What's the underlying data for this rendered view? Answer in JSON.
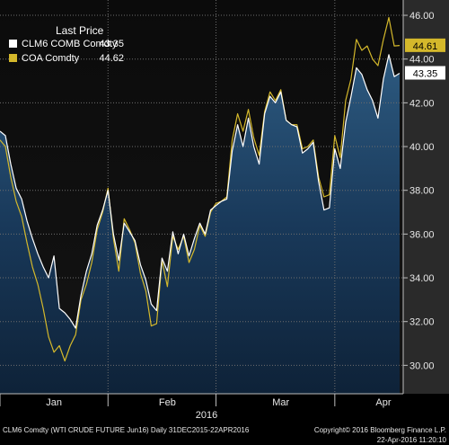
{
  "chart_data": {
    "type": "area",
    "x_labels": [
      "Jan",
      "Feb",
      "Mar",
      "Apr"
    ],
    "year_label": "2016",
    "y_ticks": [
      "30.00",
      "32.00",
      "34.00",
      "36.00",
      "38.00",
      "40.00",
      "42.00",
      "44.00",
      "46.00"
    ],
    "ylim": [
      28.7,
      46.7
    ],
    "legend": {
      "title": "Last Price",
      "items": [
        {
          "name": "CLM6 COMB Comdty",
          "value": "43.35",
          "color": "#ffffff"
        },
        {
          "name": "COA Comdty",
          "value": "44.62",
          "color": "#d4b82b"
        }
      ]
    },
    "badges": [
      {
        "text": "44.61",
        "bg": "#d4b82b",
        "fg": "#000000",
        "y": 44.61
      },
      {
        "text": "43.35",
        "bg": "#ffffff",
        "fg": "#000000",
        "y": 43.35
      }
    ],
    "series": [
      {
        "name": "CLM6 COMB Comdty",
        "color": "#ffffff",
        "values": [
          40.7,
          40.5,
          39.2,
          38.1,
          37.6,
          36.6,
          35.8,
          35.1,
          34.5,
          34.0,
          35.0,
          32.6,
          32.4,
          32.1,
          31.7,
          33.2,
          34.3,
          35.1,
          36.4,
          37.1,
          38.0,
          36.0,
          34.8,
          36.5,
          36.1,
          35.7,
          34.6,
          33.9,
          32.8,
          32.5,
          34.9,
          34.3,
          36.1,
          35.1,
          36.0,
          35.0,
          35.8,
          36.5,
          36.0,
          37.1,
          37.3,
          37.5,
          37.6,
          39.8,
          41.0,
          40.0,
          41.3,
          40.0,
          39.2,
          41.5,
          42.3,
          42.0,
          42.5,
          41.2,
          41.0,
          40.9,
          39.7,
          39.9,
          40.2,
          38.4,
          37.1,
          37.2,
          39.9,
          39.0,
          41.1,
          42.3,
          43.6,
          43.3,
          42.6,
          42.1,
          41.3,
          43.1,
          44.2,
          43.2,
          43.35
        ]
      },
      {
        "name": "COA Comdty",
        "color": "#d4b82b",
        "values": [
          40.3,
          40.0,
          38.6,
          37.5,
          36.8,
          35.6,
          34.5,
          33.7,
          32.6,
          31.3,
          30.6,
          30.9,
          30.2,
          30.9,
          31.4,
          33.0,
          33.7,
          34.7,
          36.2,
          37.0,
          38.1,
          35.8,
          34.3,
          36.7,
          36.2,
          35.6,
          34.2,
          33.4,
          31.8,
          31.9,
          34.8,
          33.6,
          35.9,
          35.3,
          35.9,
          34.7,
          35.3,
          36.4,
          35.9,
          37.0,
          37.4,
          37.5,
          37.7,
          40.3,
          41.5,
          40.7,
          41.7,
          40.4,
          39.6,
          41.6,
          42.5,
          42.1,
          42.6,
          41.2,
          41.0,
          41.0,
          39.9,
          40.0,
          40.3,
          38.6,
          37.7,
          37.8,
          40.5,
          39.5,
          42.1,
          43.1,
          44.9,
          44.4,
          44.6,
          44.0,
          43.7,
          44.9,
          45.9,
          44.6,
          44.62
        ]
      }
    ]
  },
  "footer": {
    "left": "CLM6 Comdty (WTI CRUDE FUTURE  Jun16)  Daily 31DEC2015-22APR2016",
    "right_line1": "Copyright© 2016 Bloomberg Finance L.P.",
    "right_line2": "22-Apr-2016 11:20:10"
  }
}
